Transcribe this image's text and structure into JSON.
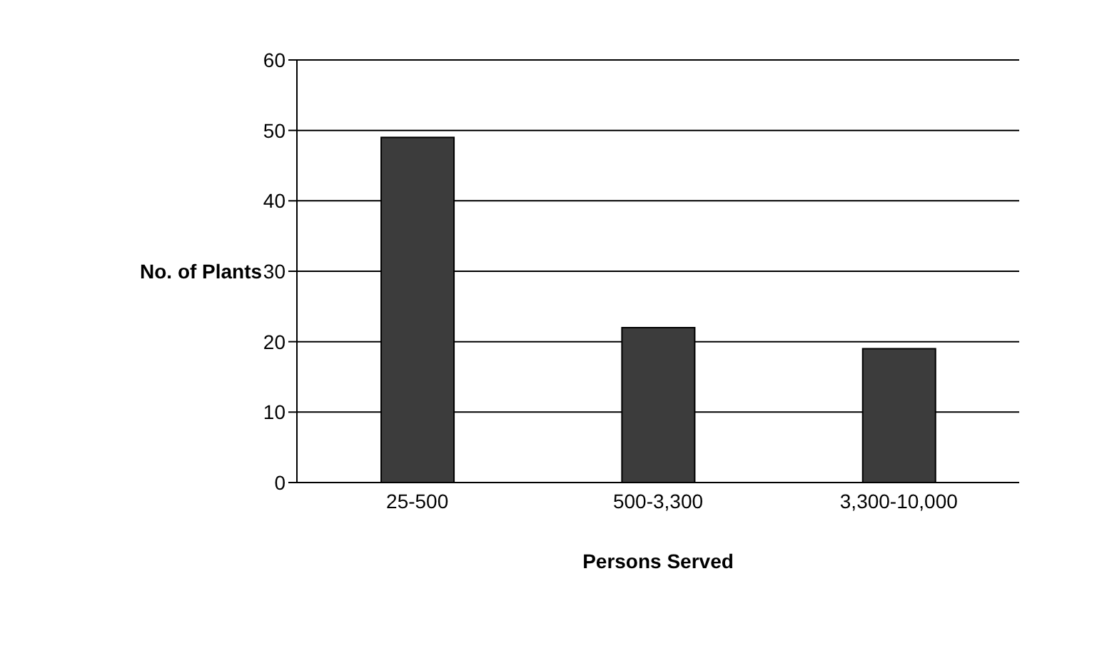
{
  "chart_data": {
    "type": "bar",
    "xlabel": "Persons Served",
    "ylabel": "No. of Plants",
    "categories": [
      "25-500",
      "500-3,300",
      "3,300-10,000"
    ],
    "values": [
      49,
      22,
      19
    ],
    "color": "#3c3c3c",
    "ylim": [
      0,
      60
    ],
    "yticks": [
      0,
      10,
      20,
      30,
      40,
      50,
      60
    ],
    "grid": "y",
    "legend": false
  }
}
